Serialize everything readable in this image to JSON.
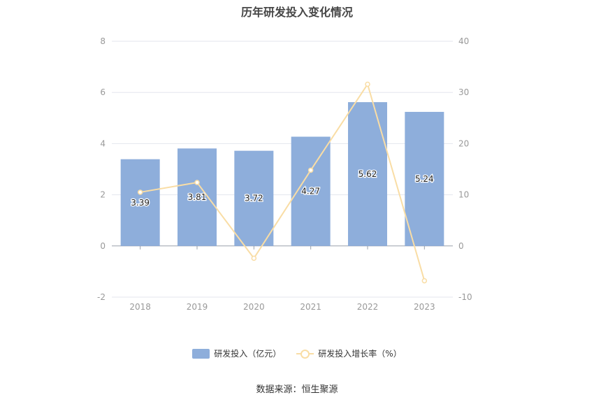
{
  "title": "历年研发投入变化情况",
  "source": "数据来源：恒生聚源",
  "colors": {
    "bar": "#8eaedb",
    "line": "#f9dda5",
    "axis_text": "#999999",
    "grid": "#e3e6ee",
    "label_text": "#222222"
  },
  "legend": {
    "bar_label": "研发投入（亿元）",
    "line_label": "研发投入增长率（%）"
  },
  "chart_data": {
    "type": "bar",
    "categories": [
      "2018",
      "2019",
      "2020",
      "2021",
      "2022",
      "2023"
    ],
    "series": [
      {
        "name": "研发投入（亿元）",
        "type": "bar",
        "axis": "left",
        "values": [
          3.39,
          3.81,
          3.72,
          4.27,
          5.62,
          5.24
        ],
        "labels": [
          "3.39",
          "3.81",
          "3.72",
          "4.27",
          "5.62",
          "5.24"
        ]
      },
      {
        "name": "研发投入增长率（%）",
        "type": "line",
        "axis": "right",
        "values": [
          10.5,
          12.4,
          -2.4,
          14.8,
          31.6,
          -6.8
        ]
      }
    ],
    "y_left": {
      "min": -2,
      "max": 8,
      "ticks": [
        "-2",
        "0",
        "2",
        "4",
        "6",
        "8"
      ]
    },
    "y_right": {
      "min": -10,
      "max": 40,
      "ticks": [
        "-10",
        "0",
        "10",
        "20",
        "30",
        "40"
      ]
    },
    "grid": true,
    "legend_position": "bottom"
  }
}
